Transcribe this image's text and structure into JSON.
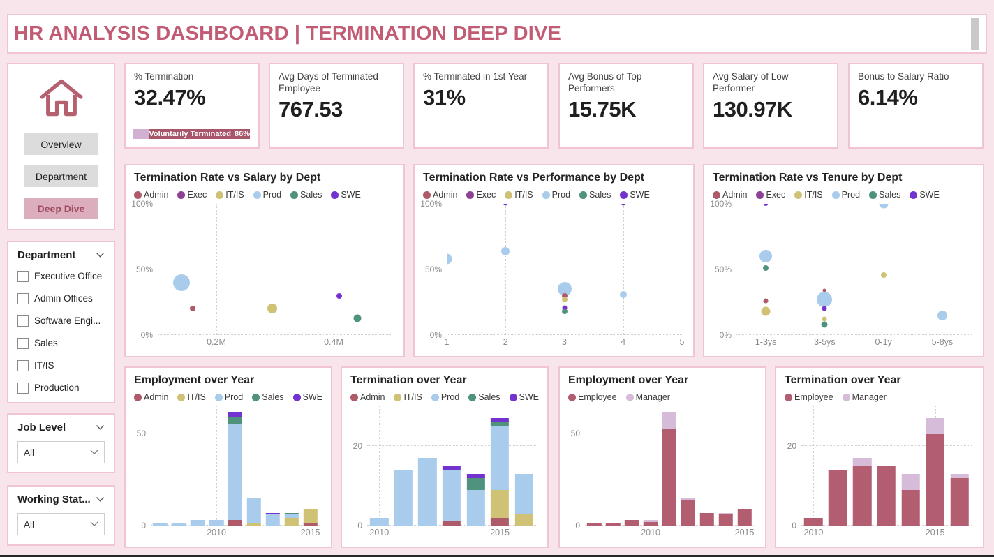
{
  "page_title": "HR ANALYSIS DASHBOARD | TERMINATION DEEP DIVE",
  "colors": {
    "background": "#f8e5eb",
    "panel_border": "#f0c5d1",
    "title_text": "#c25b74",
    "kpi_value_text": "#1f1f1f",
    "badge_rose": "#a8566a",
    "badge_lilac": "#d2b0d2",
    "nav_active_bg": "#dcaebd",
    "nav_active_text": "#9e4a60",
    "nav_inactive_bg": "#dcdcdc",
    "axis_text": "#8a8a8a",
    "dept": {
      "Admin": "#ae5a68",
      "Exec": "#8e4192",
      "IT/IS": "#d0c274",
      "Prod": "#a9cbec",
      "Sales": "#4f927e",
      "SWE": "#7333d0"
    },
    "role": {
      "Employee": "#b25e70",
      "Manager": "#d7bcd9"
    }
  },
  "sidebar": {
    "nav": {
      "home_icon": "home-icon",
      "buttons": [
        {
          "label": "Overview",
          "active": false
        },
        {
          "label": "Department",
          "active": false
        },
        {
          "label": "Deep Dive",
          "active": true
        }
      ]
    },
    "department_filter": {
      "title": "Department",
      "options": [
        "Executive Office",
        "Admin Offices",
        "Software Engi...",
        "Sales",
        "IT/IS",
        "Production"
      ],
      "checked": [
        false,
        false,
        false,
        false,
        false,
        false
      ]
    },
    "job_level_filter": {
      "title": "Job Level",
      "value": "All"
    },
    "working_status_filter": {
      "title": "Working Stat...",
      "value": "All"
    }
  },
  "kpis": [
    {
      "label": "% Termination",
      "value": "32.47%",
      "badge": {
        "text": "Voluntarily Terminated",
        "value": "86%"
      }
    },
    {
      "label": "Avg Days of Terminated Employee",
      "value": "767.53"
    },
    {
      "label": "% Terminated in 1st Year",
      "value": "31%"
    },
    {
      "label": "Avg Bonus of Top Performers",
      "value": "15.75K"
    },
    {
      "label": "Avg Salary of Low Performer",
      "value": "130.97K"
    },
    {
      "label": "Bonus to Salary Ratio",
      "value": "6.14%"
    }
  ],
  "chart_data": [
    {
      "id": "term-vs-salary",
      "type": "scatter",
      "title": "Termination Rate vs Salary by Dept",
      "legend": [
        "Admin",
        "Exec",
        "IT/IS",
        "Prod",
        "Sales",
        "SWE"
      ],
      "ymax": 100,
      "y_ticks": [
        {
          "value": 0,
          "label": "0%"
        },
        {
          "value": 50,
          "label": "50%"
        },
        {
          "value": 100,
          "label": "100%"
        }
      ],
      "x_min": 0.1,
      "x_max": 0.5,
      "x_ticks": [
        {
          "value": 0.2,
          "label": "0.2M"
        },
        {
          "value": 0.4,
          "label": "0.4M"
        }
      ],
      "points": [
        {
          "series": "Prod",
          "x": 0.14,
          "y": 40,
          "size": 24
        },
        {
          "series": "Admin",
          "x": 0.16,
          "y": 20,
          "size": 8
        },
        {
          "series": "IT/IS",
          "x": 0.295,
          "y": 20,
          "size": 14
        },
        {
          "series": "SWE",
          "x": 0.41,
          "y": 30,
          "size": 8
        },
        {
          "series": "Sales",
          "x": 0.44,
          "y": 13,
          "size": 11
        }
      ]
    },
    {
      "id": "term-vs-performance",
      "type": "scatter",
      "title": "Termination Rate vs Performance by Dept",
      "legend": [
        "Admin",
        "Exec",
        "IT/IS",
        "Prod",
        "Sales",
        "SWE"
      ],
      "ymax": 100,
      "y_ticks": [
        {
          "value": 0,
          "label": "0%"
        },
        {
          "value": 50,
          "label": "50%"
        },
        {
          "value": 100,
          "label": "100%"
        }
      ],
      "x_min": 1,
      "x_max": 5,
      "x_ticks": [
        {
          "value": 1,
          "label": "1"
        },
        {
          "value": 2,
          "label": "2"
        },
        {
          "value": 3,
          "label": "3"
        },
        {
          "value": 4,
          "label": "4"
        },
        {
          "value": 5,
          "label": "5"
        }
      ],
      "points": [
        {
          "series": "Prod",
          "x": 1,
          "y": 58,
          "size": 15
        },
        {
          "series": "Prod",
          "x": 2,
          "y": 64,
          "size": 12
        },
        {
          "series": "SWE",
          "x": 2,
          "y": 100,
          "size": 5
        },
        {
          "series": "Prod",
          "x": 3,
          "y": 35,
          "size": 20
        },
        {
          "series": "Admin",
          "x": 3,
          "y": 30,
          "size": 8
        },
        {
          "series": "IT/IS",
          "x": 3,
          "y": 27,
          "size": 8
        },
        {
          "series": "SWE",
          "x": 3,
          "y": 21,
          "size": 7
        },
        {
          "series": "Sales",
          "x": 3,
          "y": 18,
          "size": 8
        },
        {
          "series": "Prod",
          "x": 4,
          "y": 31,
          "size": 10
        },
        {
          "series": "SWE",
          "x": 4,
          "y": 100,
          "size": 5
        }
      ]
    },
    {
      "id": "term-vs-tenure",
      "type": "scatter",
      "title": "Termination Rate vs Tenure by Dept",
      "legend": [
        "Admin",
        "Exec",
        "IT/IS",
        "Prod",
        "Sales",
        "SWE"
      ],
      "ymax": 100,
      "y_ticks": [
        {
          "value": 0,
          "label": "0%"
        },
        {
          "value": 50,
          "label": "50%"
        },
        {
          "value": 100,
          "label": "100%"
        }
      ],
      "x_categories": [
        "1-3ys",
        "3-5ys",
        "0-1y",
        "5-8ys"
      ],
      "points": [
        {
          "series": "SWE",
          "x": "1-3ys",
          "y": 100,
          "size": 6
        },
        {
          "series": "Prod",
          "x": "1-3ys",
          "y": 60,
          "size": 18
        },
        {
          "series": "Sales",
          "x": "1-3ys",
          "y": 51,
          "size": 8
        },
        {
          "series": "Admin",
          "x": "1-3ys",
          "y": 26,
          "size": 7
        },
        {
          "series": "IT/IS",
          "x": "1-3ys",
          "y": 18,
          "size": 13
        },
        {
          "series": "Admin",
          "x": "3-5ys",
          "y": 34,
          "size": 5
        },
        {
          "series": "Prod",
          "x": "3-5ys",
          "y": 27,
          "size": 22
        },
        {
          "series": "SWE",
          "x": "3-5ys",
          "y": 20,
          "size": 7
        },
        {
          "series": "IT/IS",
          "x": "3-5ys",
          "y": 12,
          "size": 7
        },
        {
          "series": "Sales",
          "x": "3-5ys",
          "y": 8,
          "size": 9
        },
        {
          "series": "Prod",
          "x": "0-1y",
          "y": 100,
          "size": 13
        },
        {
          "series": "IT/IS",
          "x": "0-1y",
          "y": 46,
          "size": 8
        },
        {
          "series": "Prod",
          "x": "5-8ys",
          "y": 15,
          "size": 14
        }
      ]
    },
    {
      "id": "employment-by-dept",
      "type": "stacked-bar",
      "title": "Employment over Year",
      "legend": [
        "Admin",
        "IT/IS",
        "Prod",
        "Sales",
        "SWE"
      ],
      "ymax": 65,
      "y_ticks": [
        {
          "value": 0,
          "label": "0"
        },
        {
          "value": 50,
          "label": "50"
        }
      ],
      "x": [
        "2007",
        "2008",
        "2009",
        "2010",
        "2011",
        "2012",
        "2013",
        "2014",
        "2015"
      ],
      "x_labels": [
        {
          "index": 3,
          "label": "2010"
        },
        {
          "index": 8,
          "label": "2015"
        }
      ],
      "series": [
        {
          "name": "Admin",
          "values": [
            0,
            0,
            0,
            0,
            3,
            0,
            0,
            0,
            1
          ]
        },
        {
          "name": "IT/IS",
          "values": [
            0,
            0,
            0,
            0,
            0,
            1,
            0,
            4,
            8
          ]
        },
        {
          "name": "Prod",
          "values": [
            1,
            1,
            3,
            3,
            52,
            14,
            6,
            2,
            0
          ]
        },
        {
          "name": "Sales",
          "values": [
            0,
            0,
            0,
            0,
            4,
            0,
            0,
            1,
            0
          ]
        },
        {
          "name": "SWE",
          "values": [
            0,
            0,
            0,
            0,
            3,
            0,
            1,
            0,
            0
          ]
        }
      ]
    },
    {
      "id": "termination-by-dept",
      "type": "stacked-bar",
      "title": "Termination over Year",
      "legend": [
        "Admin",
        "IT/IS",
        "Prod",
        "Sales",
        "SWE"
      ],
      "ymax": 30,
      "y_ticks": [
        {
          "value": 0,
          "label": "0"
        },
        {
          "value": 20,
          "label": "20"
        }
      ],
      "x": [
        "2010",
        "2011",
        "2012",
        "2013",
        "2014",
        "2015",
        "2016"
      ],
      "x_labels": [
        {
          "index": 0,
          "label": "2010"
        },
        {
          "index": 5,
          "label": "2015"
        }
      ],
      "series": [
        {
          "name": "Admin",
          "values": [
            0,
            0,
            0,
            1,
            0,
            2,
            0
          ]
        },
        {
          "name": "IT/IS",
          "values": [
            0,
            0,
            0,
            0,
            0,
            7,
            3
          ]
        },
        {
          "name": "Prod",
          "values": [
            2,
            14,
            17,
            13,
            9,
            16,
            10
          ]
        },
        {
          "name": "Sales",
          "values": [
            0,
            0,
            0,
            0,
            3,
            1,
            0
          ]
        },
        {
          "name": "SWE",
          "values": [
            0,
            0,
            0,
            1,
            1,
            1,
            0
          ]
        }
      ]
    },
    {
      "id": "employment-by-role",
      "type": "stacked-bar",
      "title": "Employment over Year",
      "legend": [
        "Employee",
        "Manager"
      ],
      "ymax": 65,
      "y_ticks": [
        {
          "value": 0,
          "label": "0"
        },
        {
          "value": 50,
          "label": "50"
        }
      ],
      "x": [
        "2007",
        "2008",
        "2009",
        "2010",
        "2011",
        "2012",
        "2013",
        "2014",
        "2015"
      ],
      "x_labels": [
        {
          "index": 3,
          "label": "2010"
        },
        {
          "index": 8,
          "label": "2015"
        }
      ],
      "series": [
        {
          "name": "Employee",
          "values": [
            1,
            1,
            3,
            2,
            53,
            14,
            7,
            6,
            9
          ]
        },
        {
          "name": "Manager",
          "values": [
            0,
            0,
            0,
            1,
            9,
            1,
            0,
            1,
            0
          ]
        }
      ]
    },
    {
      "id": "termination-by-role",
      "type": "stacked-bar",
      "title": "Termination over Year",
      "legend": [
        "Employee",
        "Manager"
      ],
      "ymax": 30,
      "y_ticks": [
        {
          "value": 0,
          "label": "0"
        },
        {
          "value": 20,
          "label": "20"
        }
      ],
      "x": [
        "2010",
        "2011",
        "2012",
        "2013",
        "2014",
        "2015",
        "2016"
      ],
      "x_labels": [
        {
          "index": 0,
          "label": "2010"
        },
        {
          "index": 5,
          "label": "2015"
        }
      ],
      "series": [
        {
          "name": "Employee",
          "values": [
            2,
            14,
            15,
            15,
            9,
            23,
            12
          ]
        },
        {
          "name": "Manager",
          "values": [
            0,
            0,
            2,
            0,
            4,
            4,
            1
          ]
        }
      ]
    }
  ]
}
